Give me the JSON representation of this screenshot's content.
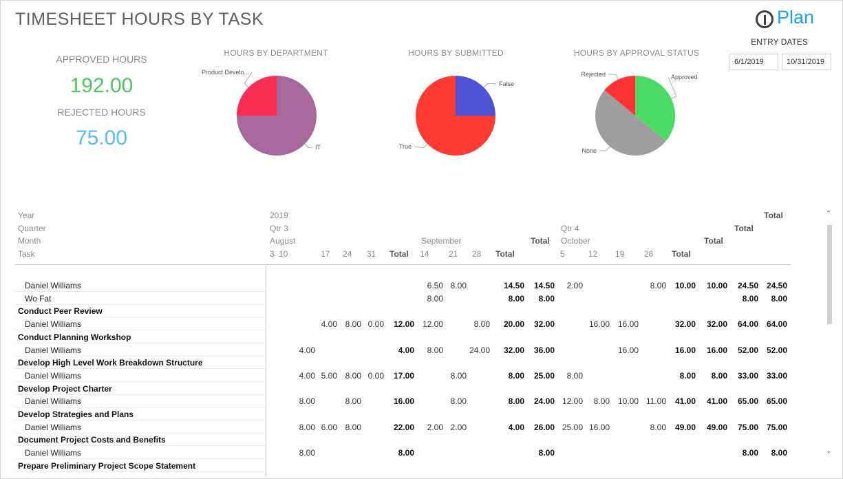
{
  "title": "TIMESHEET HOURS BY TASK",
  "logo": {
    "text": "Plan"
  },
  "entry_dates": {
    "label": "ENTRY DATES",
    "start": "6/1/2019",
    "end": "10/31/2019"
  },
  "kpis": {
    "approved_label": "APPROVED HOURS",
    "approved_value": "192.00",
    "rejected_label": "REJECTED HOURS",
    "rejected_value": "75.00"
  },
  "chart_data": [
    {
      "type": "pie",
      "title": "HOURS BY DEPARTMENT",
      "slices": [
        {
          "label": "IT",
          "value": 75,
          "color": "#a66999"
        },
        {
          "label": "Product Develo...",
          "value": 25,
          "color": "#fa2e55"
        }
      ]
    },
    {
      "type": "pie",
      "title": "HOURS BY SUBMITTED",
      "slices": [
        {
          "label": "False",
          "value": 25,
          "color": "#5052d6"
        },
        {
          "label": "True",
          "value": 75,
          "color": "#ff3c33"
        }
      ]
    },
    {
      "type": "pie",
      "title": "HOURS BY APPROVAL STATUS",
      "slices": [
        {
          "label": "Approved",
          "value": 36,
          "color": "#4cd964"
        },
        {
          "label": "None",
          "value": 50,
          "color": "#9e9e9e"
        },
        {
          "label": "Rejected",
          "value": 14,
          "color": "#ff3333"
        }
      ]
    }
  ],
  "matrix": {
    "row_headers": {
      "year": "Year",
      "quarter": "Quarter",
      "month": "Month",
      "task": "Task"
    },
    "year": "2019",
    "qtr3": "Qtr 3",
    "qtr4": "Qtr 4",
    "august": "August",
    "september": "September",
    "october": "October",
    "total": "Total",
    "columns": [
      "3",
      "10",
      "17",
      "24",
      "31",
      "Total",
      "14",
      "21",
      "28",
      "Total",
      "Total",
      "5",
      "12",
      "19",
      "26",
      "Total",
      "Total",
      "Total",
      "Total"
    ],
    "rows": [
      {
        "type": "detail",
        "label": "Daniel Williams",
        "values": [
          "",
          "",
          "",
          "",
          "",
          "",
          "6.50",
          "8.00",
          "",
          "14.50",
          "14.50",
          "2.00",
          "",
          "",
          "8.00",
          "10.00",
          "10.00",
          "24.50",
          "24.50"
        ]
      },
      {
        "type": "detail",
        "label": "Wo Fat",
        "values": [
          "",
          "",
          "",
          "",
          "",
          "",
          "8.00",
          "",
          "",
          "8.00",
          "8.00",
          "",
          "",
          "",
          "",
          "",
          "",
          "8.00",
          "8.00"
        ]
      },
      {
        "type": "group",
        "label": "Conduct Peer Review",
        "values": []
      },
      {
        "type": "detail",
        "label": "Daniel Williams",
        "values": [
          "",
          "",
          "4.00",
          "8.00",
          "0.00",
          "12.00",
          "12.00",
          "",
          "8.00",
          "20.00",
          "32.00",
          "",
          "16.00",
          "16.00",
          "",
          "32.00",
          "32.00",
          "64.00",
          "64.00"
        ]
      },
      {
        "type": "group",
        "label": "Conduct Planning Workshop",
        "values": []
      },
      {
        "type": "detail",
        "label": "Daniel Williams",
        "values": [
          "",
          "4.00",
          "",
          "",
          "",
          "4.00",
          "8.00",
          "",
          "24.00",
          "32.00",
          "36.00",
          "",
          "",
          "16.00",
          "",
          "16.00",
          "16.00",
          "52.00",
          "52.00"
        ]
      },
      {
        "type": "group",
        "label": "Develop High Level Work Breakdown Structure",
        "values": []
      },
      {
        "type": "detail",
        "label": "Daniel Williams",
        "values": [
          "",
          "4.00",
          "5.00",
          "8.00",
          "0.00",
          "17.00",
          "",
          "8.00",
          "",
          "8.00",
          "25.00",
          "8.00",
          "",
          "",
          "",
          "8.00",
          "8.00",
          "33.00",
          "33.00"
        ]
      },
      {
        "type": "group",
        "label": "Develop Project Charter",
        "values": []
      },
      {
        "type": "detail",
        "label": "Daniel Williams",
        "values": [
          "",
          "8.00",
          "",
          "8.00",
          "",
          "16.00",
          "",
          "8.00",
          "",
          "8.00",
          "24.00",
          "12.00",
          "8.00",
          "10.00",
          "11.00",
          "41.00",
          "41.00",
          "65.00",
          "65.00"
        ]
      },
      {
        "type": "group",
        "label": "Develop Strategies and Plans",
        "values": []
      },
      {
        "type": "detail",
        "label": "Daniel Williams",
        "values": [
          "",
          "8.00",
          "6.00",
          "8.00",
          "",
          "22.00",
          "2.00",
          "2.00",
          "",
          "4.00",
          "26.00",
          "25.00",
          "16.00",
          "",
          "8.00",
          "49.00",
          "49.00",
          "75.00",
          "75.00"
        ]
      },
      {
        "type": "group",
        "label": "Document Project Costs and Benefits",
        "values": []
      },
      {
        "type": "detail",
        "label": "Daniel Williams",
        "values": [
          "",
          "8.00",
          "",
          "",
          "",
          "8.00",
          "",
          "",
          "",
          "",
          "8.00",
          "",
          "",
          "",
          "",
          "",
          "",
          "8.00",
          "8.00"
        ]
      },
      {
        "type": "group",
        "label": "Prepare Preliminary Project Scope Statement",
        "values": []
      }
    ]
  }
}
